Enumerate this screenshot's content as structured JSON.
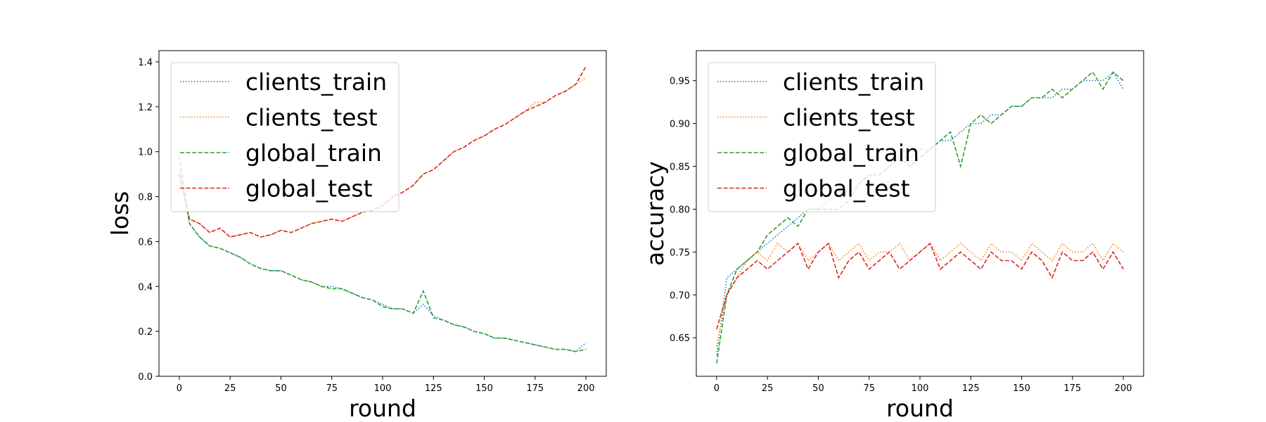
{
  "colors": {
    "clients_train": "#1f77b4",
    "clients_test": "#ff7f0e",
    "global_train": "#2ca02c",
    "global_test": "#d62728"
  },
  "chart_data": [
    {
      "type": "line",
      "title": "",
      "xlabel": "round",
      "ylabel": "loss",
      "xlim": [
        -10,
        210
      ],
      "ylim": [
        0,
        1.45
      ],
      "xticks": [
        0,
        25,
        50,
        75,
        100,
        125,
        150,
        175,
        200
      ],
      "xtick_labels": [
        "0",
        "25",
        "50",
        "75",
        "100",
        "125",
        "150",
        "175",
        "200"
      ],
      "yticks": [
        0.0,
        0.2,
        0.4,
        0.6,
        0.8,
        1.0,
        1.2,
        1.4
      ],
      "ytick_labels": [
        "0.0",
        "0.2",
        "0.4",
        "0.6",
        "0.8",
        "1.0",
        "1.2",
        "1.4"
      ],
      "grid": false,
      "legend": "upper-left",
      "x": [
        0,
        5,
        10,
        15,
        20,
        25,
        30,
        35,
        40,
        45,
        50,
        55,
        60,
        65,
        70,
        75,
        80,
        85,
        90,
        95,
        100,
        105,
        110,
        115,
        120,
        125,
        130,
        135,
        140,
        145,
        150,
        155,
        160,
        165,
        170,
        175,
        180,
        185,
        190,
        195,
        200
      ],
      "series": [
        {
          "name": "clients_train",
          "style": "dotted",
          "color": "#1f77b4",
          "values": [
            0.92,
            0.68,
            0.62,
            0.58,
            0.57,
            0.55,
            0.53,
            0.5,
            0.48,
            0.47,
            0.47,
            0.45,
            0.43,
            0.42,
            0.4,
            0.4,
            0.39,
            0.37,
            0.35,
            0.34,
            0.32,
            0.3,
            0.3,
            0.28,
            0.32,
            0.27,
            0.25,
            0.23,
            0.22,
            0.2,
            0.19,
            0.17,
            0.17,
            0.16,
            0.15,
            0.14,
            0.13,
            0.12,
            0.12,
            0.11,
            0.15
          ]
        },
        {
          "name": "clients_test",
          "style": "dotted",
          "color": "#ff7f0e",
          "values": [
            0.9,
            0.7,
            0.68,
            0.64,
            0.66,
            0.62,
            0.63,
            0.64,
            0.62,
            0.63,
            0.65,
            0.64,
            0.66,
            0.68,
            0.69,
            0.7,
            0.69,
            0.71,
            0.73,
            0.74,
            0.76,
            0.8,
            0.82,
            0.85,
            0.9,
            0.92,
            0.96,
            1.0,
            1.02,
            1.05,
            1.07,
            1.1,
            1.12,
            1.15,
            1.18,
            1.22,
            1.22,
            1.25,
            1.27,
            1.3,
            1.33
          ]
        },
        {
          "name": "global_train",
          "style": "dashed",
          "color": "#2ca02c",
          "values": [
            0.98,
            0.68,
            0.62,
            0.58,
            0.57,
            0.55,
            0.53,
            0.5,
            0.48,
            0.47,
            0.47,
            0.45,
            0.43,
            0.42,
            0.4,
            0.39,
            0.39,
            0.37,
            0.35,
            0.34,
            0.31,
            0.3,
            0.3,
            0.28,
            0.38,
            0.26,
            0.25,
            0.23,
            0.22,
            0.2,
            0.19,
            0.17,
            0.17,
            0.16,
            0.15,
            0.14,
            0.13,
            0.12,
            0.12,
            0.11,
            0.12
          ]
        },
        {
          "name": "global_test",
          "style": "dashed",
          "color": "#d62728",
          "values": [
            0.9,
            0.7,
            0.68,
            0.64,
            0.66,
            0.62,
            0.63,
            0.64,
            0.62,
            0.63,
            0.65,
            0.64,
            0.66,
            0.68,
            0.69,
            0.7,
            0.69,
            0.71,
            0.73,
            0.74,
            0.76,
            0.8,
            0.82,
            0.85,
            0.9,
            0.92,
            0.96,
            1.0,
            1.02,
            1.05,
            1.07,
            1.1,
            1.12,
            1.15,
            1.18,
            1.2,
            1.22,
            1.25,
            1.27,
            1.3,
            1.38
          ]
        }
      ]
    },
    {
      "type": "line",
      "title": "",
      "xlabel": "round",
      "ylabel": "accuracy",
      "xlim": [
        -10,
        210
      ],
      "ylim": [
        0.605,
        0.985
      ],
      "xticks": [
        0,
        25,
        50,
        75,
        100,
        125,
        150,
        175,
        200
      ],
      "xtick_labels": [
        "0",
        "25",
        "50",
        "75",
        "100",
        "125",
        "150",
        "175",
        "200"
      ],
      "yticks": [
        0.65,
        0.7,
        0.75,
        0.8,
        0.85,
        0.9,
        0.95
      ],
      "ytick_labels": [
        "0.65",
        "0.70",
        "0.75",
        "0.80",
        "0.85",
        "0.90",
        "0.95"
      ],
      "grid": false,
      "legend": "upper-left",
      "x": [
        0,
        5,
        10,
        15,
        20,
        25,
        30,
        35,
        40,
        45,
        50,
        55,
        60,
        65,
        70,
        75,
        80,
        85,
        90,
        95,
        100,
        105,
        110,
        115,
        120,
        125,
        130,
        135,
        140,
        145,
        150,
        155,
        160,
        165,
        170,
        175,
        180,
        185,
        190,
        195,
        200
      ],
      "series": [
        {
          "name": "clients_train",
          "style": "dotted",
          "color": "#1f77b4",
          "values": [
            0.63,
            0.72,
            0.73,
            0.74,
            0.75,
            0.76,
            0.77,
            0.78,
            0.79,
            0.8,
            0.8,
            0.81,
            0.82,
            0.82,
            0.83,
            0.84,
            0.84,
            0.85,
            0.86,
            0.86,
            0.87,
            0.87,
            0.88,
            0.88,
            0.89,
            0.9,
            0.9,
            0.91,
            0.91,
            0.92,
            0.92,
            0.93,
            0.93,
            0.93,
            0.94,
            0.94,
            0.95,
            0.95,
            0.95,
            0.96,
            0.94
          ]
        },
        {
          "name": "clients_test",
          "style": "dotted",
          "color": "#ff7f0e",
          "values": [
            0.64,
            0.7,
            0.72,
            0.74,
            0.75,
            0.74,
            0.76,
            0.75,
            0.76,
            0.74,
            0.75,
            0.76,
            0.74,
            0.75,
            0.76,
            0.74,
            0.75,
            0.75,
            0.76,
            0.74,
            0.75,
            0.76,
            0.74,
            0.75,
            0.76,
            0.75,
            0.74,
            0.76,
            0.75,
            0.75,
            0.74,
            0.76,
            0.75,
            0.74,
            0.76,
            0.75,
            0.75,
            0.76,
            0.74,
            0.76,
            0.75
          ]
        },
        {
          "name": "global_train",
          "style": "dashed",
          "color": "#2ca02c",
          "values": [
            0.62,
            0.7,
            0.73,
            0.74,
            0.75,
            0.77,
            0.78,
            0.79,
            0.78,
            0.8,
            0.8,
            0.8,
            0.8,
            0.81,
            0.83,
            0.84,
            0.84,
            0.85,
            0.86,
            0.85,
            0.86,
            0.87,
            0.88,
            0.89,
            0.85,
            0.9,
            0.91,
            0.9,
            0.91,
            0.92,
            0.92,
            0.93,
            0.93,
            0.94,
            0.93,
            0.94,
            0.95,
            0.96,
            0.94,
            0.96,
            0.95
          ]
        },
        {
          "name": "global_test",
          "style": "dashed",
          "color": "#d62728",
          "values": [
            0.66,
            0.7,
            0.72,
            0.73,
            0.74,
            0.73,
            0.74,
            0.75,
            0.76,
            0.73,
            0.75,
            0.76,
            0.72,
            0.74,
            0.75,
            0.73,
            0.74,
            0.75,
            0.73,
            0.74,
            0.75,
            0.76,
            0.73,
            0.74,
            0.75,
            0.74,
            0.73,
            0.75,
            0.74,
            0.74,
            0.73,
            0.75,
            0.74,
            0.72,
            0.75,
            0.74,
            0.74,
            0.75,
            0.73,
            0.75,
            0.73
          ]
        }
      ]
    }
  ]
}
